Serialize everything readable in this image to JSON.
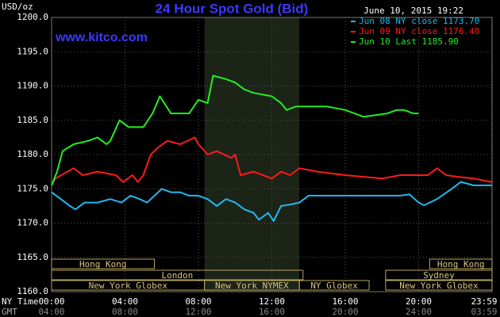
{
  "chart_data": {
    "type": "line",
    "title": "24 Hour Spot Gold (Bid)",
    "subtitle": "www.kitco.com",
    "timestamp": "June 10, 2015 19:22",
    "y_label": "USD/oz",
    "x_label": "NY Time",
    "x2_label": "GMT",
    "legend": "top-right",
    "grid": true,
    "xlim": [
      0,
      24
    ],
    "ylim": [
      1160,
      1200
    ],
    "xticks": [
      {
        "value": 0,
        "label": "00:00"
      },
      {
        "value": 4,
        "label": "04:00"
      },
      {
        "value": 8,
        "label": "08:00"
      },
      {
        "value": 12,
        "label": "12:00"
      },
      {
        "value": 16,
        "label": "16:00"
      },
      {
        "value": 20,
        "label": "20:00"
      },
      {
        "value": 23.98,
        "label": "23:59"
      }
    ],
    "gmt_tick_labels": [
      "04:00",
      "08:00",
      "12:00",
      "16:00",
      "20:00",
      "24:00",
      "03:59"
    ],
    "yticks": [
      {
        "value": 1160,
        "label": "1160.0"
      },
      {
        "value": 1165,
        "label": "1165.0"
      },
      {
        "value": 1170,
        "label": "1170.0"
      },
      {
        "value": 1175,
        "label": "1175.0"
      },
      {
        "value": 1180,
        "label": "1180.0"
      },
      {
        "value": 1185,
        "label": "1185.0"
      },
      {
        "value": 1190,
        "label": "1190.0"
      },
      {
        "value": 1195,
        "label": "1195.0"
      },
      {
        "value": 1200,
        "label": "1200.0"
      }
    ],
    "shaded_hours": [
      8.33,
      13.5
    ],
    "session_rows": [
      [
        {
          "name": "Hong Kong",
          "start": 0,
          "end": 5.6
        },
        {
          "name": "Hong Kong",
          "start": 20.6,
          "end": 24
        }
      ],
      [
        {
          "name": "London",
          "start": 0,
          "end": 13.7
        },
        {
          "name": "Sydney",
          "start": 18.2,
          "end": 24
        }
      ],
      [
        {
          "name": "New York Globex",
          "start": 0,
          "end": 8.33
        },
        {
          "name": "New York NYMEX",
          "start": 8.33,
          "end": 13.5
        },
        {
          "name": "NY Globex",
          "start": 13.5,
          "end": 17.3
        },
        {
          "name": "New York Globex",
          "start": 18.2,
          "end": 24
        }
      ]
    ],
    "series": [
      {
        "name": "Jun 08 NY close 1173.70",
        "color": "#22b8f0",
        "x": [
          0,
          0.5,
          1.0,
          1.3,
          1.8,
          2.5,
          3.2,
          3.8,
          4.3,
          4.8,
          5.2,
          6.0,
          6.5,
          7.0,
          7.5,
          8.0,
          8.5,
          9.0,
          9.5,
          10.0,
          10.5,
          11.0,
          11.3,
          11.8,
          12.1,
          12.5,
          13.0,
          13.5,
          14.0,
          15.0,
          16.0,
          17.0,
          18.0,
          19.0,
          19.5,
          20.0,
          20.3,
          21.0,
          21.8,
          22.3,
          23.0,
          23.98
        ],
        "values": [
          1174.5,
          1173.5,
          1172.5,
          1172,
          1173,
          1173,
          1173.5,
          1173,
          1174,
          1173.5,
          1173,
          1175,
          1174.5,
          1174.5,
          1174,
          1174,
          1173.5,
          1172.5,
          1173.5,
          1173,
          1172,
          1171.5,
          1170.5,
          1171.5,
          1170.3,
          1172.5,
          1172.7,
          1173,
          1174,
          1174,
          1174,
          1174,
          1174,
          1174,
          1174.2,
          1173,
          1172.6,
          1173.5,
          1175,
          1176,
          1175.5,
          1175.5
        ]
      },
      {
        "name": "Jun 09 NY close 1176.40",
        "color": "#ff1a1a",
        "x": [
          0,
          0.2,
          1.2,
          1.7,
          2.5,
          3.5,
          3.9,
          4.4,
          4.7,
          5.0,
          5.4,
          5.8,
          6.3,
          7.0,
          7.8,
          8.0,
          8.5,
          9.0,
          9.8,
          10.0,
          10.3,
          11.0,
          12.0,
          12.5,
          13.0,
          13.5,
          14.5,
          16.0,
          18.0,
          19.0,
          20.5,
          21.0,
          21.5,
          22.0,
          23.0,
          23.98
        ],
        "values": [
          1175.5,
          1176.5,
          1178,
          1177,
          1177.5,
          1177,
          1176,
          1177,
          1176,
          1177,
          1180,
          1181,
          1182,
          1181.5,
          1182.5,
          1181.5,
          1180,
          1180.5,
          1179.5,
          1180,
          1177,
          1177.5,
          1176.5,
          1177.5,
          1177,
          1178,
          1177.5,
          1177,
          1176.5,
          1177,
          1177,
          1178,
          1177,
          1176.8,
          1176.5,
          1176
        ]
      },
      {
        "name": "Jun 10 Last 1185.90",
        "color": "#22ee22",
        "x": [
          0,
          0.3,
          0.6,
          1.2,
          2.0,
          2.5,
          3.0,
          3.2,
          3.7,
          4.2,
          5.0,
          5.5,
          5.9,
          6.5,
          7.5,
          8.0,
          8.5,
          8.8,
          9.5,
          10.0,
          10.5,
          11.0,
          12.0,
          12.5,
          12.8,
          13.3,
          14.0,
          15.0,
          16.0,
          17.0,
          18.3,
          18.8,
          19.2,
          19.7,
          20.0
        ],
        "values": [
          1175.5,
          1177.5,
          1180.5,
          1181.5,
          1182,
          1182.5,
          1181.5,
          1182,
          1185,
          1184,
          1184,
          1186,
          1188.5,
          1186,
          1186,
          1188,
          1187.5,
          1191.5,
          1191,
          1190.5,
          1189.5,
          1189,
          1188.5,
          1187.5,
          1186.5,
          1187,
          1187,
          1187,
          1186.5,
          1185.5,
          1186,
          1186.5,
          1186.5,
          1186,
          1186
        ]
      }
    ]
  }
}
